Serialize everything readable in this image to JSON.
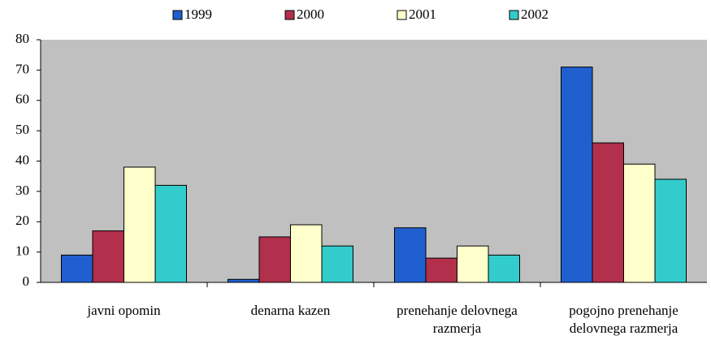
{
  "chart_data": {
    "type": "bar",
    "categories": [
      "javni opomin",
      "denarna kazen",
      "prenehanje delovnega razmerja",
      "pogojno prenehanje delovnega razmerja"
    ],
    "series": [
      {
        "name": "1999",
        "color": "#1f5fd0",
        "values": [
          9,
          1,
          18,
          71
        ]
      },
      {
        "name": "2000",
        "color": "#b2304c",
        "values": [
          17,
          15,
          8,
          46
        ]
      },
      {
        "name": "2001",
        "color": "#ffffcc",
        "values": [
          38,
          19,
          12,
          39
        ]
      },
      {
        "name": "2002",
        "color": "#33cccc",
        "values": [
          32,
          12,
          9,
          34
        ]
      }
    ],
    "ylim": [
      0,
      80
    ],
    "yticks": [
      0,
      10,
      20,
      30,
      40,
      50,
      60,
      70,
      80
    ],
    "legend": "top",
    "plot_background": "#c0c0c0"
  }
}
